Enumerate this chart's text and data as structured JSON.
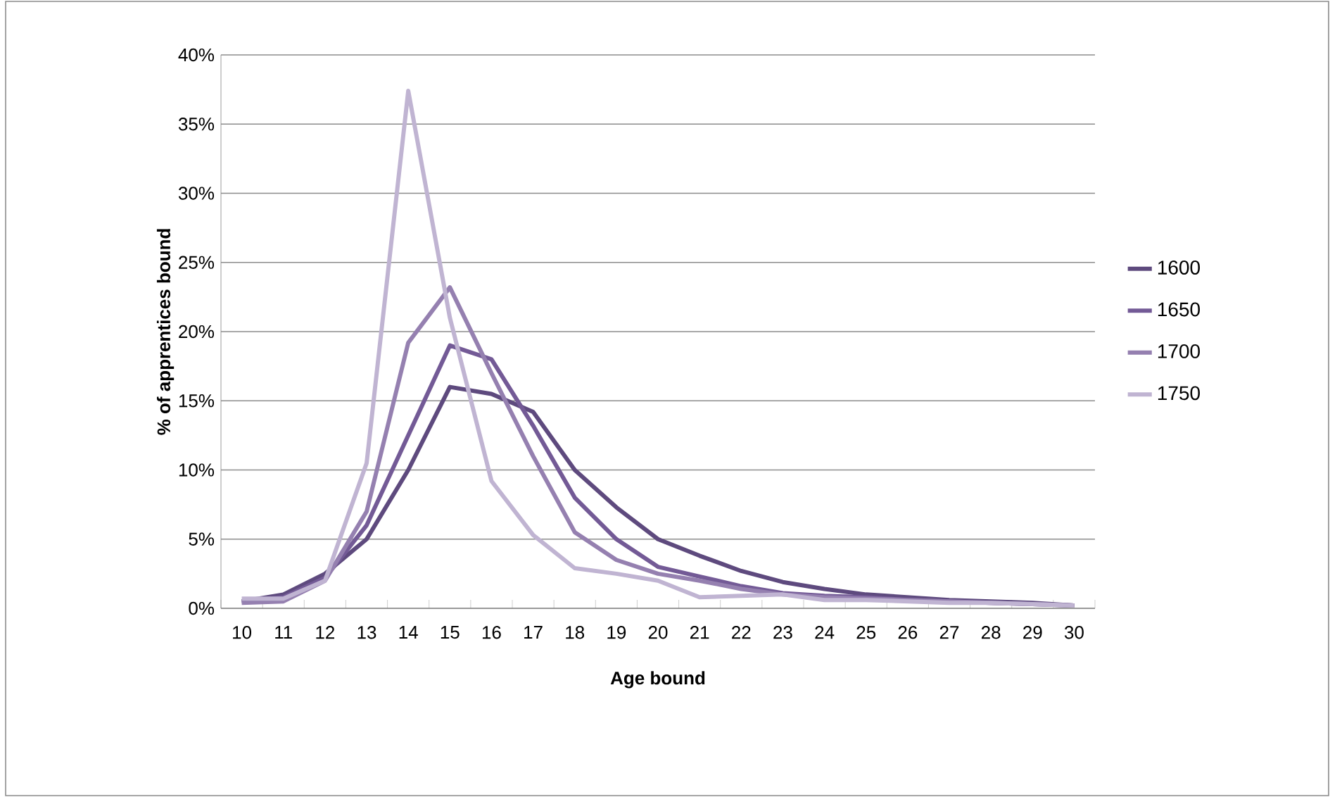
{
  "chart_data": {
    "type": "line",
    "xlabel": "Age bound",
    "ylabel": "% of apprentices bound",
    "categories": [
      "10",
      "11",
      "12",
      "13",
      "14",
      "15",
      "16",
      "17",
      "18",
      "19",
      "20",
      "21",
      "22",
      "23",
      "24",
      "25",
      "26",
      "27",
      "28",
      "29",
      "30"
    ],
    "series": [
      {
        "name": "1600",
        "color": "#5e4a7e",
        "values": [
          0.5,
          1,
          2.5,
          5,
          10,
          16,
          15.5,
          14.2,
          10,
          7.3,
          5,
          3.8,
          2.7,
          1.9,
          1.4,
          1.0,
          0.8,
          0.6,
          0.5,
          0.4,
          0.2
        ]
      },
      {
        "name": "1650",
        "color": "#735a96",
        "values": [
          0.5,
          0.8,
          2.2,
          6,
          12.5,
          19,
          18,
          13.2,
          8,
          5,
          3,
          2.3,
          1.6,
          1.1,
          0.9,
          0.8,
          0.6,
          0.5,
          0.4,
          0.3,
          0.2
        ]
      },
      {
        "name": "1700",
        "color": "#9580b0",
        "values": [
          0.4,
          0.5,
          2.0,
          7,
          19.2,
          23.2,
          17,
          11,
          5.5,
          3.5,
          2.5,
          2.0,
          1.4,
          1.0,
          0.8,
          0.7,
          0.6,
          0.5,
          0.4,
          0.3,
          0.2
        ]
      },
      {
        "name": "1750",
        "color": "#c0b4d2",
        "values": [
          0.7,
          0.7,
          2.0,
          10.5,
          37.4,
          21,
          9.2,
          5.3,
          2.9,
          2.5,
          2.0,
          0.8,
          0.9,
          1.0,
          0.6,
          0.6,
          0.5,
          0.4,
          0.4,
          0.3,
          0.2
        ]
      }
    ],
    "ylim": [
      0,
      40
    ],
    "yticks": [
      {
        "value": 0,
        "label": "0%"
      },
      {
        "value": 5,
        "label": "5%"
      },
      {
        "value": 10,
        "label": "10%"
      },
      {
        "value": 15,
        "label": "15%"
      },
      {
        "value": 20,
        "label": "20%"
      },
      {
        "value": 25,
        "label": "25%"
      },
      {
        "value": 30,
        "label": "30%"
      },
      {
        "value": 35,
        "label": "35%"
      },
      {
        "value": 40,
        "label": "40%"
      }
    ],
    "grid": "y",
    "legend": "right",
    "marker": "none",
    "line_style": "solid"
  }
}
